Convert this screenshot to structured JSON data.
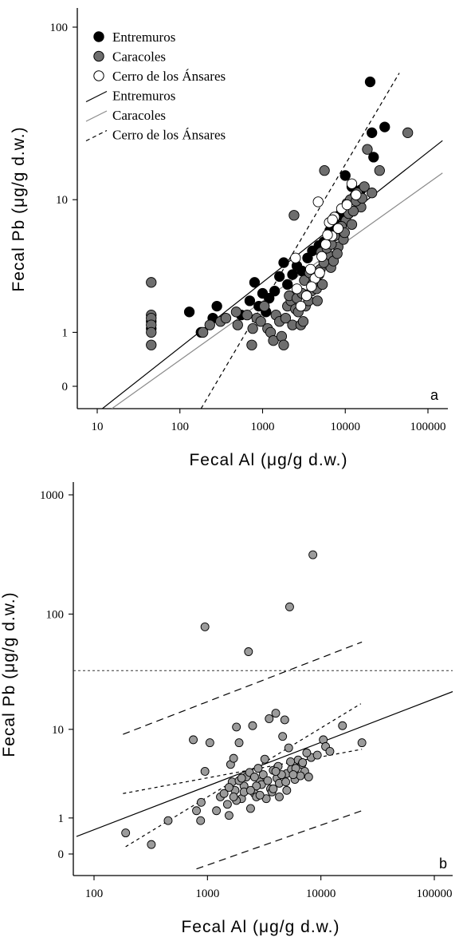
{
  "chart_data": [
    {
      "type": "scatter",
      "panel_label": "a",
      "xlabel": "Fecal Al (μg/g d.w.)",
      "ylabel": "Fecal Pb (μg/g d.w.)",
      "x_scale": "log",
      "y_scale": "log(y+1)",
      "xlim": [
        5,
        150000
      ],
      "ylim": [
        -0.25,
        180
      ],
      "xticks": [
        10,
        100,
        1000,
        10000,
        100000
      ],
      "xtick_labels": [
        "10",
        "100",
        "1000",
        "10000",
        "100000"
      ],
      "yticks": [
        0,
        1,
        10,
        100
      ],
      "ytick_labels": [
        "0",
        "1",
        "10",
        "100"
      ],
      "legend": {
        "position": "top-left",
        "items": [
          {
            "label": "Entremuros",
            "kind": "marker",
            "fill": "#000000"
          },
          {
            "label": "Caracoles",
            "kind": "marker",
            "fill": "#6e6e6e"
          },
          {
            "label": "Cerro de los Ánsares",
            "kind": "marker",
            "fill": "#ffffff"
          },
          {
            "label": "Entremuros",
            "kind": "line",
            "stroke": "#000000",
            "dash": "solid"
          },
          {
            "label": "Caracoles",
            "kind": "line",
            "stroke": "#8a8a8a",
            "dash": "solid"
          },
          {
            "label": "Cerro de los Ánsares",
            "kind": "line",
            "stroke": "#000000",
            "dash": "dashed"
          }
        ]
      },
      "series": [
        {
          "name": "Entremuros",
          "marker_fill": "#000000",
          "points": [
            [
              45,
              1.3
            ],
            [
              45,
              1.1
            ],
            [
              130,
              1.6
            ],
            [
              180,
              1.0
            ],
            [
              250,
              1.4
            ],
            [
              280,
              1.8
            ],
            [
              550,
              1.5
            ],
            [
              700,
              2.0
            ],
            [
              800,
              2.8
            ],
            [
              900,
              1.8
            ],
            [
              1000,
              2.3
            ],
            [
              1100,
              1.6
            ],
            [
              1200,
              2.1
            ],
            [
              1400,
              2.4
            ],
            [
              1600,
              3.1
            ],
            [
              1800,
              3.9
            ],
            [
              2000,
              2.7
            ],
            [
              2300,
              3.2
            ],
            [
              2600,
              3.7
            ],
            [
              3000,
              3.4
            ],
            [
              3500,
              4.2
            ],
            [
              4000,
              4.7
            ],
            [
              4800,
              5.1
            ],
            [
              5500,
              5.4
            ],
            [
              6500,
              6.4
            ],
            [
              7500,
              7.1
            ],
            [
              8500,
              8.0
            ],
            [
              10000,
              14.0
            ],
            [
              12000,
              12.0
            ],
            [
              14000,
              10.5
            ],
            [
              15500,
              11.5
            ],
            [
              20000,
              49.0
            ],
            [
              21000,
              25.0
            ],
            [
              22000,
              18.0
            ],
            [
              30000,
              27.0
            ]
          ]
        },
        {
          "name": "Caracoles",
          "marker_fill": "#6e6e6e",
          "points": [
            [
              45,
              2.8
            ],
            [
              45,
              1.5
            ],
            [
              45,
              1.4
            ],
            [
              45,
              1.2
            ],
            [
              45,
              1.0
            ],
            [
              45,
              0.7
            ],
            [
              190,
              1.0
            ],
            [
              230,
              1.2
            ],
            [
              310,
              1.3
            ],
            [
              360,
              1.4
            ],
            [
              480,
              1.6
            ],
            [
              500,
              1.2
            ],
            [
              650,
              1.5
            ],
            [
              740,
              0.7
            ],
            [
              760,
              1.1
            ],
            [
              850,
              1.4
            ],
            [
              950,
              1.3
            ],
            [
              1050,
              1.8
            ],
            [
              1150,
              1.1
            ],
            [
              1250,
              1.0
            ],
            [
              1350,
              0.8
            ],
            [
              1450,
              1.5
            ],
            [
              1600,
              1.3
            ],
            [
              1700,
              0.9
            ],
            [
              1800,
              0.7
            ],
            [
              1900,
              1.4
            ],
            [
              2000,
              1.8
            ],
            [
              2200,
              2.0
            ],
            [
              2300,
              1.2
            ],
            [
              2400,
              8.0
            ],
            [
              2500,
              1.7
            ],
            [
              2700,
              1.6
            ],
            [
              2900,
              1.2
            ],
            [
              3100,
              1.3
            ],
            [
              3300,
              1.8
            ],
            [
              3600,
              2.0
            ],
            [
              3900,
              2.4
            ],
            [
              4100,
              2.6
            ],
            [
              4300,
              3.0
            ],
            [
              4500,
              2.5
            ],
            [
              4800,
              3.2
            ],
            [
              5000,
              3.5
            ],
            [
              5300,
              2.7
            ],
            [
              5600,
              15.0
            ],
            [
              5900,
              4.0
            ],
            [
              6200,
              4.4
            ],
            [
              6700,
              3.6
            ],
            [
              7200,
              4.0
            ],
            [
              7700,
              6.0
            ],
            [
              8200,
              5.0
            ],
            [
              8800,
              6.5
            ],
            [
              9500,
              5.6
            ],
            [
              10200,
              7.4
            ],
            [
              11000,
              8.2
            ],
            [
              12000,
              7.0
            ],
            [
              13000,
              10.5
            ],
            [
              14000,
              11.0
            ],
            [
              15500,
              9.0
            ],
            [
              17000,
              12.0
            ],
            [
              18500,
              20.0
            ],
            [
              21000,
              11.0
            ],
            [
              26000,
              15.0
            ],
            [
              57000,
              25.0
            ],
            [
              2100,
              2.2
            ],
            [
              2600,
              2.1
            ],
            [
              3000,
              2.3
            ],
            [
              3200,
              2.9
            ],
            [
              3700,
              3.3
            ],
            [
              4000,
              2.7
            ],
            [
              4600,
              2.0
            ],
            [
              5100,
              4.6
            ],
            [
              5500,
              3.9
            ],
            [
              6000,
              4.9
            ],
            [
              6800,
              5.2
            ],
            [
              7400,
              5.9
            ],
            [
              8000,
              4.5
            ],
            [
              9000,
              6.8
            ],
            [
              9800,
              6.2
            ],
            [
              10500,
              9.5
            ],
            [
              11500,
              10.0
            ],
            [
              12500,
              8.5
            ],
            [
              13500,
              9.8
            ],
            [
              16000,
              10.2
            ]
          ]
        },
        {
          "name": "Cerro de los Ánsares",
          "marker_fill": "#ffffff",
          "points": [
            [
              2500,
              4.2
            ],
            [
              2600,
              2.5
            ],
            [
              2900,
              1.8
            ],
            [
              3400,
              2.2
            ],
            [
              3800,
              3.5
            ],
            [
              4300,
              3.0
            ],
            [
              4700,
              9.7
            ],
            [
              5200,
              4.3
            ],
            [
              5800,
              5.2
            ],
            [
              6400,
              7.2
            ],
            [
              6900,
              5.9
            ],
            [
              7400,
              7.8
            ],
            [
              8200,
              6.6
            ],
            [
              9000,
              8.8
            ],
            [
              10500,
              9.3
            ],
            [
              12000,
              12.5
            ],
            [
              13500,
              10.7
            ],
            [
              6100,
              6.0
            ],
            [
              7000,
              7.5
            ],
            [
              3900,
              2.6
            ],
            [
              4900,
              3.3
            ]
          ]
        }
      ],
      "fit_lines": [
        {
          "name": "Entremuros",
          "stroke": "#000000",
          "dash": "solid",
          "x": [
            11.5,
            150000
          ],
          "y": [
            -0.25,
            22.5
          ]
        },
        {
          "name": "Caracoles",
          "stroke": "#8a8a8a",
          "dash": "solid",
          "x": [
            15,
            150000
          ],
          "y": [
            -0.25,
            14.5
          ]
        },
        {
          "name": "Cerro de los Ánsares",
          "stroke": "#000000",
          "dash": "dashed",
          "x": [
            180,
            45000
          ],
          "y": [
            -0.25,
            55
          ]
        }
      ]
    },
    {
      "type": "scatter",
      "panel_label": "b",
      "xlabel": "Fecal Al (μg/g d.w.)",
      "ylabel": "Fecal Pb (μg/g d.w.)",
      "x_scale": "log",
      "y_scale": "log(y+1)",
      "xlim": [
        70,
        150000
      ],
      "ylim": [
        -0.25,
        1500
      ],
      "xticks": [
        100,
        1000,
        10000,
        100000
      ],
      "xtick_labels": [
        "100",
        "1000",
        "10000",
        "100000"
      ],
      "yticks": [
        0,
        1,
        10,
        100,
        1000
      ],
      "ytick_labels": [
        "0",
        "1",
        "10",
        "100",
        "1000"
      ],
      "series": [
        {
          "name": "",
          "marker_fill": "#9b9b9b",
          "points": [
            [
              190,
              0.5
            ],
            [
              320,
              0.2
            ],
            [
              450,
              0.9
            ],
            [
              750,
              8.0
            ],
            [
              800,
              1.3
            ],
            [
              870,
              0.9
            ],
            [
              880,
              1.7
            ],
            [
              950,
              78.0
            ],
            [
              950,
              3.9
            ],
            [
              1050,
              7.5
            ],
            [
              1200,
              1.3
            ],
            [
              1300,
              2.0
            ],
            [
              1400,
              2.2
            ],
            [
              1500,
              1.6
            ],
            [
              1550,
              1.1
            ],
            [
              1600,
              4.6
            ],
            [
              1650,
              3.0
            ],
            [
              1700,
              5.3
            ],
            [
              1750,
              2.4
            ],
            [
              1800,
              10.5
            ],
            [
              1900,
              7.5
            ],
            [
              2000,
              1.9
            ],
            [
              2100,
              2.7
            ],
            [
              2200,
              3.4
            ],
            [
              2300,
              48.0
            ],
            [
              2400,
              1.4
            ],
            [
              2500,
              10.8
            ],
            [
              2600,
              2.2
            ],
            [
              2700,
              2.0
            ],
            [
              2800,
              4.2
            ],
            [
              2900,
              3.0
            ],
            [
              3100,
              3.6
            ],
            [
              3300,
              1.9
            ],
            [
              3500,
              12.5
            ],
            [
              3600,
              2.5
            ],
            [
              3800,
              4.0
            ],
            [
              4000,
              14.0
            ],
            [
              4100,
              3.3
            ],
            [
              4300,
              2.9
            ],
            [
              4600,
              8.6
            ],
            [
              4800,
              12.2
            ],
            [
              5000,
              3.7
            ],
            [
              5200,
              6.7
            ],
            [
              5300,
              115.0
            ],
            [
              5500,
              4.1
            ],
            [
              5900,
              3.2
            ],
            [
              6300,
              5.1
            ],
            [
              6800,
              4.6
            ],
            [
              7200,
              3.9
            ],
            [
              7800,
              3.4
            ],
            [
              8200,
              5.4
            ],
            [
              8500,
              315.0
            ],
            [
              9300,
              5.7
            ],
            [
              10500,
              8.0
            ],
            [
              11000,
              6.9
            ],
            [
              12000,
              6.2
            ],
            [
              15500,
              10.8
            ],
            [
              23000,
              7.5
            ],
            [
              1550,
              2.6
            ],
            [
              1900,
              3.1
            ],
            [
              2100,
              2.3
            ],
            [
              2350,
              3.8
            ],
            [
              2600,
              3.4
            ],
            [
              3000,
              2.8
            ],
            [
              3400,
              3.1
            ],
            [
              3700,
              2.3
            ],
            [
              4200,
              4.4
            ],
            [
              4500,
              3.6
            ],
            [
              5400,
              4.9
            ],
            [
              6000,
              4.2
            ],
            [
              6600,
              3.5
            ],
            [
              7500,
              6.0
            ],
            [
              3200,
              5.2
            ],
            [
              2000,
              3.3
            ],
            [
              2700,
              2.7
            ],
            [
              1800,
              1.8
            ],
            [
              1700,
              2.0
            ],
            [
              4000,
              3.9
            ],
            [
              5700,
              3.6
            ],
            [
              6900,
              4.8
            ],
            [
              4900,
              3.0
            ],
            [
              2400,
              2.4
            ],
            [
              2900,
              2.1
            ],
            [
              3800,
              2.5
            ],
            [
              4300,
              2.0
            ],
            [
              5000,
              2.4
            ]
          ]
        }
      ],
      "reference_line": {
        "y": 33,
        "dash": "dotted"
      },
      "fit_lines": [
        {
          "name": "",
          "stroke": "#000000",
          "dash": "solid",
          "x": [
            70,
            150000
          ],
          "y": [
            0.4,
            22
          ]
        },
        {
          "name": "",
          "stroke": "#000000",
          "dash": "short-dash",
          "x": [
            190,
            22500
          ],
          "y": [
            0.15,
            17
          ]
        },
        {
          "name": "",
          "stroke": "#000000",
          "dash": "short-dash",
          "x": [
            180,
            23000
          ],
          "y": [
            2.2,
            6.5
          ]
        },
        {
          "name": "",
          "stroke": "#000000",
          "dash": "long-dash",
          "x": [
            180,
            23000
          ],
          "y": [
            9.0,
            58.0
          ]
        },
        {
          "name": "",
          "stroke": "#000000",
          "dash": "long-dash",
          "x": [
            800,
            23000
          ],
          "y": [
            -0.25,
            1.3
          ]
        }
      ]
    }
  ]
}
